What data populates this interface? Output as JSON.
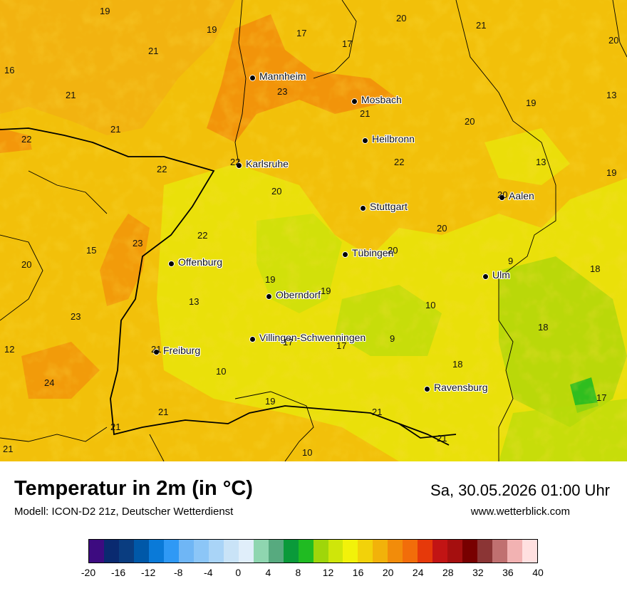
{
  "map": {
    "cities": [
      {
        "name": "Mannheim"
      },
      {
        "name": "Mosbach"
      },
      {
        "name": "Heilbronn"
      },
      {
        "name": "Karlsruhe"
      },
      {
        "name": "Stuttgart"
      },
      {
        "name": "Aalen"
      },
      {
        "name": "Offenburg"
      },
      {
        "name": "Tübingen"
      },
      {
        "name": "Ulm"
      },
      {
        "name": "Oberndorf"
      },
      {
        "name": "Villingen-Schwenningen"
      },
      {
        "name": "Freiburg"
      },
      {
        "name": "Ravensburg"
      }
    ],
    "values": [
      "19",
      "19",
      "17",
      "17",
      "20",
      "21",
      "20",
      "21",
      "16",
      "23",
      "21",
      "21",
      "13",
      "19",
      "20",
      "21",
      "22",
      "22",
      "22",
      "13",
      "19",
      "20",
      "22",
      "20",
      "22",
      "20",
      "23",
      "15",
      "20",
      "20",
      "19",
      "9",
      "19",
      "18",
      "13",
      "23",
      "10",
      "18",
      "21",
      "17",
      "17",
      "9",
      "12",
      "18",
      "24",
      "10",
      "17",
      "19",
      "21",
      "21",
      "21",
      "21",
      "21",
      "10"
    ],
    "base_color": "#f2c200"
  },
  "header": {
    "title": "Temperatur in 2m (in °C)",
    "subtitle": "Modell: ICON-D2 21z, Deutscher Wetterdienst",
    "datetime": "Sa, 30.05.2026 01:00 Uhr",
    "website": "www.wetterblick.com"
  },
  "legend": {
    "colors": [
      "#3d0b80",
      "#0a2a70",
      "#0a3d80",
      "#0058a8",
      "#0a7ad8",
      "#2f99f5",
      "#6fb6f5",
      "#8cc6f7",
      "#a9d4f7",
      "#c9e3f7",
      "#e0eefa",
      "#8fd6b0",
      "#57aa7f",
      "#0a9a3a",
      "#20bb22",
      "#9fd60a",
      "#cfe60a",
      "#f2f20a",
      "#f2d20a",
      "#f2b20a",
      "#f28c0a",
      "#f26d0a",
      "#e6390a",
      "#c21414",
      "#a50f0f",
      "#780000",
      "#8b3535",
      "#c07070",
      "#f2b2b2",
      "#ffe0e0"
    ],
    "ticks": [
      "-20",
      "-16",
      "-12",
      "-8",
      "-4",
      "0",
      "4",
      "8",
      "12",
      "16",
      "20",
      "24",
      "28",
      "32",
      "36",
      "40"
    ],
    "range": [
      -20,
      40
    ]
  }
}
